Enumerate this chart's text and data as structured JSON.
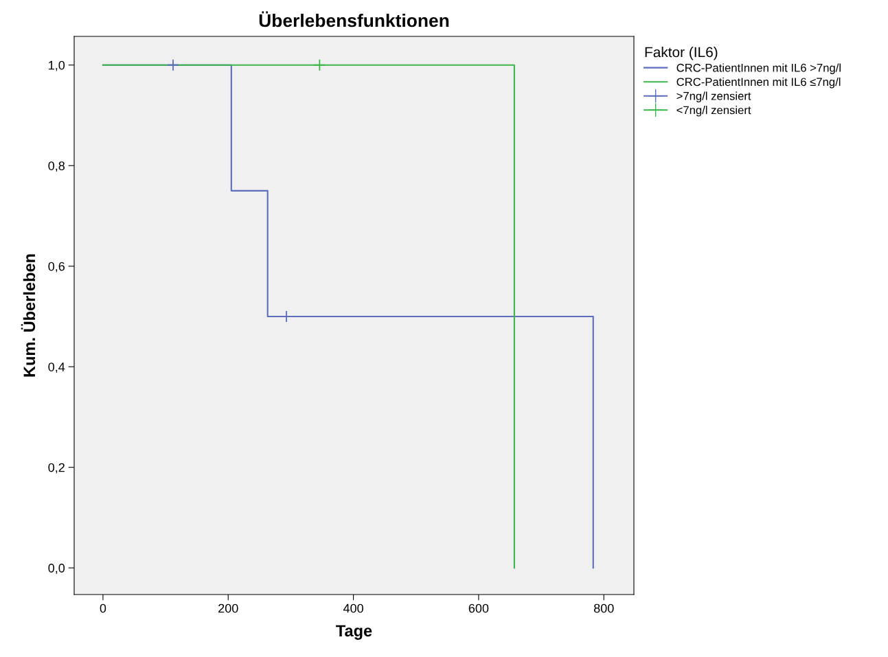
{
  "chart_data": {
    "type": "step",
    "title": "Überlebensfunktionen",
    "xlabel": "Tage",
    "ylabel": "Kum. Überleben",
    "legend_title": "Faktor (IL6)",
    "series": [
      {
        "name": "CRC-PatientInnen mit IL6 >7ng/l",
        "color": "#5c6dbd",
        "x": [
          0,
          205,
          263,
          783,
          783
        ],
        "values": [
          1.0,
          0.75,
          0.5,
          0.5,
          0.0
        ]
      },
      {
        "name": "CRC-PatientInnen mit IL6 ≤7ng/l",
        "color": "#3cb64a",
        "x": [
          0,
          657,
          657
        ],
        "values": [
          1.0,
          1.0,
          0.0
        ]
      },
      {
        "name": ">7ng/l zensiert",
        "type": "scatter",
        "marker": "cross",
        "color": "#5c6dbd",
        "x": [
          112,
          293
        ],
        "values": [
          1.0,
          0.5
        ]
      },
      {
        "name": "<7ng/l zensiert",
        "type": "scatter",
        "marker": "cross",
        "color": "#3cb64a",
        "x": [
          346
        ],
        "values": [
          1.0
        ]
      }
    ],
    "xlim": [
      -46,
      848
    ],
    "ylim": [
      -0.053,
      1.057
    ],
    "xticks": [
      0,
      200,
      400,
      600,
      800
    ],
    "yticks": [
      {
        "value": 0,
        "label": "0,0"
      },
      {
        "value": 0.2,
        "label": "0,2"
      },
      {
        "value": 0.4,
        "label": "0,4"
      },
      {
        "value": 0.6,
        "label": "0,6"
      },
      {
        "value": 0.8,
        "label": "0,8"
      },
      {
        "value": 1.0,
        "label": "1,0"
      }
    ],
    "grid": false,
    "legend": "top right"
  }
}
